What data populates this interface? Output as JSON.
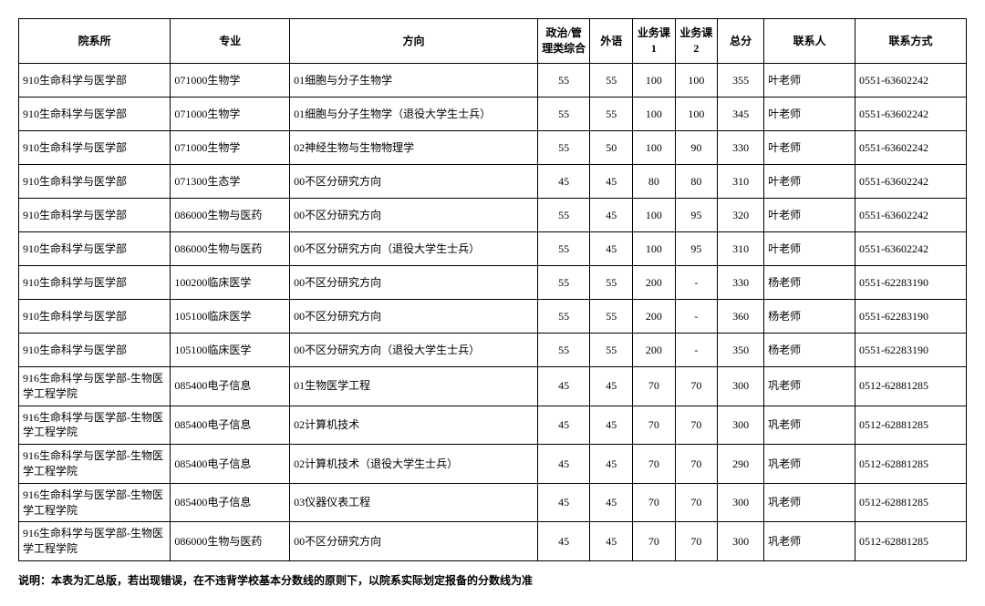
{
  "columns": [
    "院系所",
    "专业",
    "方向",
    "政治/管理类综合",
    "外语",
    "业务课1",
    "业务课2",
    "总分",
    "联系人",
    "联系方式"
  ],
  "rows": [
    [
      "910生命科学与医学部",
      "071000生物学",
      "01细胞与分子生物学",
      "55",
      "55",
      "100",
      "100",
      "355",
      "叶老师",
      "0551-63602242"
    ],
    [
      "910生命科学与医学部",
      "071000生物学",
      "01细胞与分子生物学（退役大学生士兵）",
      "55",
      "55",
      "100",
      "100",
      "345",
      "叶老师",
      "0551-63602242"
    ],
    [
      "910生命科学与医学部",
      "071000生物学",
      "02神经生物与生物物理学",
      "55",
      "50",
      "100",
      "90",
      "330",
      "叶老师",
      "0551-63602242"
    ],
    [
      "910生命科学与医学部",
      "071300生态学",
      "00不区分研究方向",
      "45",
      "45",
      "80",
      "80",
      "310",
      "叶老师",
      "0551-63602242"
    ],
    [
      "910生命科学与医学部",
      "086000生物与医药",
      "00不区分研究方向",
      "55",
      "45",
      "100",
      "95",
      "320",
      "叶老师",
      "0551-63602242"
    ],
    [
      "910生命科学与医学部",
      "086000生物与医药",
      "00不区分研究方向（退役大学生士兵）",
      "55",
      "45",
      "100",
      "95",
      "310",
      "叶老师",
      "0551-63602242"
    ],
    [
      "910生命科学与医学部",
      "100200临床医学",
      "00不区分研究方向",
      "55",
      "55",
      "200",
      "-",
      "330",
      "杨老师",
      "0551-62283190"
    ],
    [
      "910生命科学与医学部",
      "105100临床医学",
      "00不区分研究方向",
      "55",
      "55",
      "200",
      "-",
      "360",
      "杨老师",
      "0551-62283190"
    ],
    [
      "910生命科学与医学部",
      "105100临床医学",
      "00不区分研究方向（退役大学生士兵）",
      "55",
      "55",
      "200",
      "-",
      "350",
      "杨老师",
      "0551-62283190"
    ],
    [
      "916生命科学与医学部-生物医学工程学院",
      "085400电子信息",
      "01生物医学工程",
      "45",
      "45",
      "70",
      "70",
      "300",
      "巩老师",
      "0512-62881285"
    ],
    [
      "916生命科学与医学部-生物医学工程学院",
      "085400电子信息",
      "02计算机技术",
      "45",
      "45",
      "70",
      "70",
      "300",
      "巩老师",
      "0512-62881285"
    ],
    [
      "916生命科学与医学部-生物医学工程学院",
      "085400电子信息",
      "02计算机技术（退役大学生士兵）",
      "45",
      "45",
      "70",
      "70",
      "290",
      "巩老师",
      "0512-62881285"
    ],
    [
      "916生命科学与医学部-生物医学工程学院",
      "085400电子信息",
      "03仪器仪表工程",
      "45",
      "45",
      "70",
      "70",
      "300",
      "巩老师",
      "0512-62881285"
    ],
    [
      "916生命科学与医学部-生物医学工程学院",
      "086000生物与医药",
      "00不区分研究方向",
      "45",
      "45",
      "70",
      "70",
      "300",
      "巩老师",
      "0512-62881285"
    ]
  ],
  "note": "说明：本表为汇总版，若出现错误，在不违背学校基本分数线的原则下，以院系实际划定报备的分数线为准"
}
